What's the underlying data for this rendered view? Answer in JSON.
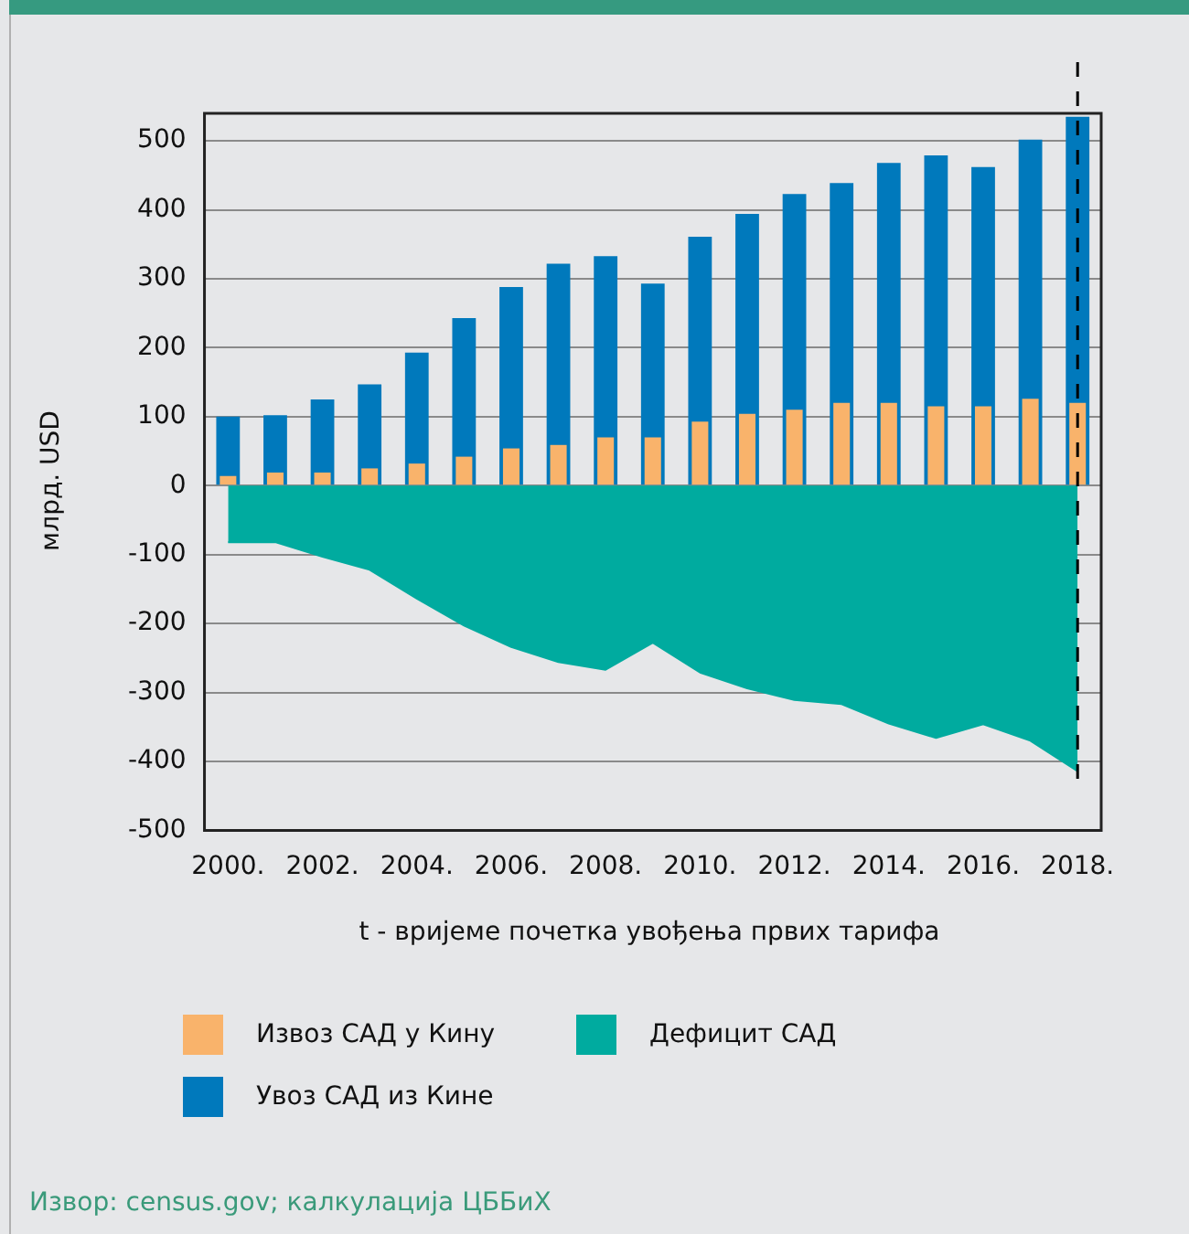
{
  "chart_data": {
    "type": "bar",
    "xlabel": "t - вријеме почетка увођења првих тарифа",
    "ylabel": "млрд. USD",
    "categories": [
      "2000.",
      null,
      "2002.",
      null,
      "2004.",
      null,
      "2006.",
      null,
      "2008.",
      null,
      "2010.",
      null,
      "2012.",
      null,
      "2014.",
      null,
      "2016.",
      null,
      "2018."
    ],
    "series": [
      {
        "name": "Извоз САД у Кину",
        "color": "#f9b36b",
        "values": [
          14,
          19,
          19,
          25,
          32,
          42,
          54,
          59,
          70,
          70,
          93,
          104,
          110,
          120,
          120,
          115,
          115,
          126,
          120
        ]
      },
      {
        "name": "Дефицит САД",
        "type": "area",
        "color": "#00ab9f",
        "values": [
          -82,
          -82,
          -103,
          -122,
          -164,
          -203,
          -234,
          -256,
          -267,
          -228,
          -271,
          -294,
          -311,
          -317,
          -345,
          -366,
          -346,
          -370,
          -414
        ]
      },
      {
        "name": "Увоз САД из Кине",
        "color": "#0079bc",
        "values": [
          100,
          102,
          125,
          147,
          193,
          243,
          288,
          322,
          333,
          293,
          361,
          394,
          423,
          439,
          468,
          479,
          462,
          502,
          535
        ]
      }
    ],
    "ylim": [
      -500,
      540
    ],
    "yticks": [
      -500,
      -400,
      -300,
      -200,
      -100,
      0,
      100,
      200,
      300,
      400,
      500
    ],
    "grid": "y",
    "legend": "bottom",
    "ref_lines": [
      {
        "axis": "x",
        "value": "2018.",
        "color": "#000000",
        "line_style": "dashed"
      }
    ],
    "annotations": [
      "Извор: census.gov; калкулација ЦББиХ"
    ]
  }
}
